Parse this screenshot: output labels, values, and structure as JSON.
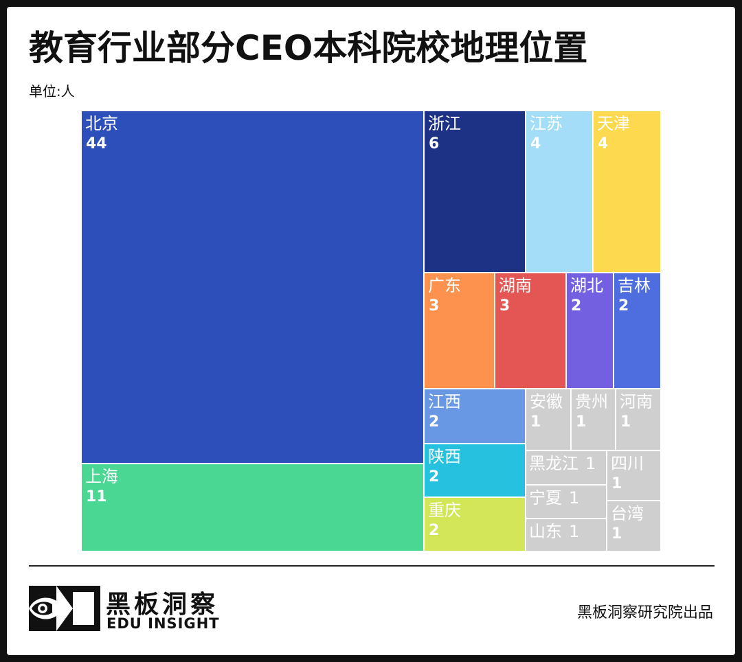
{
  "header": {
    "title": "教育行业部分CEO本科院校地理位置",
    "unit": "单位:人"
  },
  "footer": {
    "brand_cn": "黑板洞察",
    "brand_en": "EDU INSIGHT",
    "credit": "黑板洞察研究院出品",
    "logo_icon": "eye-frame-logo-icon"
  },
  "chart_data": {
    "type": "treemap",
    "title": "教育行业部分CEO本科院校地理位置",
    "unit": "人",
    "nodes": [
      {
        "name": "北京",
        "value": 44,
        "color": "#2d4fba"
      },
      {
        "name": "上海",
        "value": 11,
        "color": "#4ad693"
      },
      {
        "name": "浙江",
        "value": 6,
        "color": "#1e3285"
      },
      {
        "name": "江苏",
        "value": 4,
        "color": "#a3ddf7"
      },
      {
        "name": "天津",
        "value": 4,
        "color": "#fcd94f"
      },
      {
        "name": "广东",
        "value": 3,
        "color": "#fc924d"
      },
      {
        "name": "湖南",
        "value": 3,
        "color": "#e35654"
      },
      {
        "name": "湖北",
        "value": 2,
        "color": "#7260e0"
      },
      {
        "name": "吉林",
        "value": 2,
        "color": "#4e6ddf"
      },
      {
        "name": "江西",
        "value": 2,
        "color": "#6897e3"
      },
      {
        "name": "陕西",
        "value": 2,
        "color": "#25c1de"
      },
      {
        "name": "重庆",
        "value": 2,
        "color": "#d2e657"
      },
      {
        "name": "安徽",
        "value": 1,
        "color": "#cfcfcf"
      },
      {
        "name": "贵州",
        "value": 1,
        "color": "#cfcfcf"
      },
      {
        "name": "河南",
        "value": 1,
        "color": "#cfcfcf"
      },
      {
        "name": "黑龙江",
        "value": 1,
        "color": "#cfcfcf"
      },
      {
        "name": "四川",
        "value": 1,
        "color": "#cfcfcf"
      },
      {
        "name": "宁夏",
        "value": 1,
        "color": "#cfcfcf"
      },
      {
        "name": "台湾",
        "value": 1,
        "color": "#cfcfcf"
      },
      {
        "name": "山东",
        "value": 1,
        "color": "#cfcfcf"
      }
    ]
  }
}
